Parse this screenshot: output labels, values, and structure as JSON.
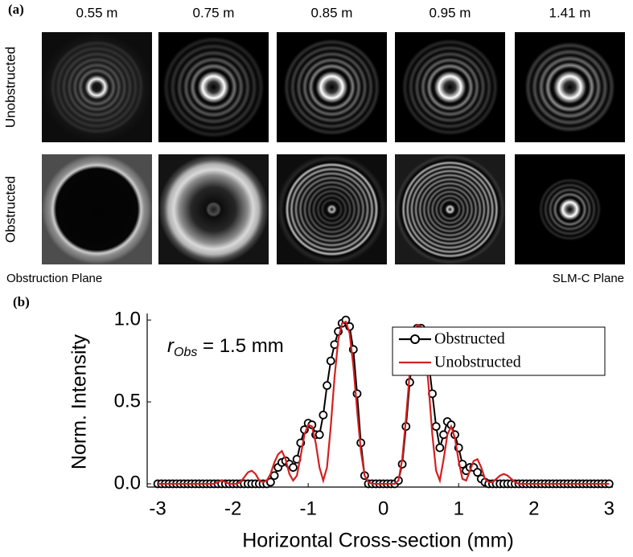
{
  "panel_a": {
    "label": "(a)",
    "columns": [
      "0.55 m",
      "0.75 m",
      "0.85 m",
      "0.95 m",
      "1.41 m"
    ],
    "rows": [
      "Unobstructed",
      "Obstructed"
    ],
    "left_caption": "Obstruction Plane",
    "right_caption": "SLM-C Plane"
  },
  "panel_b": {
    "label": "(b)"
  },
  "chart_data": {
    "type": "line",
    "xlabel": "Horizontal Cross-section (mm)",
    "ylabel": "Norm. Intensity",
    "annotation": {
      "symbol": "r",
      "subscript": "Obs",
      "text": " = 1.5 mm"
    },
    "xlim": [
      -3.14,
      3.05
    ],
    "ylim": [
      -0.02,
      1.04
    ],
    "xticks": [
      -3,
      -2,
      -1,
      0,
      1,
      2,
      3
    ],
    "yticks": [
      {
        "value": 0,
        "label": "0.0"
      },
      {
        "value": 0.5,
        "label": "0.5"
      },
      {
        "value": 1,
        "label": "1.0"
      }
    ],
    "legend": "upper right",
    "x": [
      -3,
      -2.95,
      -2.9,
      -2.85,
      -2.8,
      -2.75,
      -2.7,
      -2.65,
      -2.6,
      -2.55,
      -2.5,
      -2.45,
      -2.4,
      -2.35,
      -2.3,
      -2.25,
      -2.2,
      -2.15,
      -2.1,
      -2.05,
      -2,
      -1.95,
      -1.9,
      -1.85,
      -1.8,
      -1.75,
      -1.7,
      -1.65,
      -1.6,
      -1.55,
      -1.5,
      -1.45,
      -1.4,
      -1.35,
      -1.3,
      -1.25,
      -1.2,
      -1.15,
      -1.1,
      -1.05,
      -1,
      -0.95,
      -0.9,
      -0.85,
      -0.8,
      -0.75,
      -0.7,
      -0.65,
      -0.6,
      -0.55,
      -0.5,
      -0.45,
      -0.4,
      -0.35,
      -0.3,
      -0.25,
      -0.2,
      -0.15,
      -0.1,
      -0.05,
      0,
      0.05,
      0.1,
      0.15,
      0.2,
      0.25,
      0.3,
      0.35,
      0.4,
      0.45,
      0.5,
      0.55,
      0.6,
      0.65,
      0.7,
      0.75,
      0.8,
      0.85,
      0.9,
      0.95,
      1,
      1.05,
      1.1,
      1.15,
      1.2,
      1.25,
      1.3,
      1.35,
      1.4,
      1.45,
      1.5,
      1.55,
      1.6,
      1.65,
      1.7,
      1.75,
      1.8,
      1.85,
      1.9,
      1.95,
      2,
      2.05,
      2.1,
      2.15,
      2.2,
      2.25,
      2.3,
      2.35,
      2.4,
      2.45,
      2.5,
      2.55,
      2.6,
      2.65,
      2.7,
      2.75,
      2.8,
      2.85,
      2.9,
      2.95,
      3
    ],
    "series": [
      {
        "name": "Obstructed",
        "color": "#000000",
        "marker": "circle",
        "values": [
          0,
          0,
          0,
          0,
          0,
          0,
          0,
          0,
          0,
          0,
          0,
          0,
          0,
          0,
          0,
          0,
          0,
          0,
          0,
          0,
          0,
          0,
          0,
          0,
          0,
          0,
          0,
          0,
          0,
          0,
          0.01,
          0.05,
          0.1,
          0.13,
          0.14,
          0.12,
          0.1,
          0.15,
          0.25,
          0.33,
          0.37,
          0.36,
          0.3,
          0.3,
          0.42,
          0.6,
          0.75,
          0.85,
          0.93,
          0.98,
          1,
          0.96,
          0.82,
          0.55,
          0.25,
          0.05,
          0,
          0,
          0,
          0,
          0,
          0,
          0,
          0,
          0.02,
          0.12,
          0.35,
          0.62,
          0.85,
          0.95,
          0.95,
          0.9,
          0.75,
          0.55,
          0.35,
          0.22,
          0.3,
          0.38,
          0.36,
          0.3,
          0.22,
          0.12,
          0.08,
          0.1,
          0.1,
          0.07,
          0.03,
          0.01,
          0,
          0,
          0,
          0,
          0,
          0,
          0,
          0,
          0,
          0,
          0,
          0,
          0,
          0,
          0,
          0,
          0,
          0,
          0,
          0,
          0,
          0,
          0,
          0,
          0,
          0,
          0,
          0,
          0,
          0,
          0,
          0,
          0
        ]
      },
      {
        "name": "Unobstructed",
        "color": "#d42020",
        "values": [
          0,
          0,
          0,
          0,
          0,
          0,
          0,
          0,
          0,
          0,
          0,
          0,
          0,
          0,
          0,
          0,
          0.01,
          0.02,
          0.01,
          0,
          0,
          0,
          0.01,
          0.04,
          0.07,
          0.08,
          0.06,
          0.02,
          0.01,
          0.02,
          0.06,
          0.13,
          0.18,
          0.2,
          0.15,
          0.06,
          0.02,
          0.05,
          0.17,
          0.3,
          0.36,
          0.35,
          0.25,
          0.1,
          0.02,
          0.1,
          0.35,
          0.65,
          0.88,
          0.98,
          0.99,
          0.92,
          0.72,
          0.45,
          0.2,
          0.05,
          0.01,
          0,
          0,
          0,
          0,
          0,
          0,
          0,
          0.02,
          0.15,
          0.4,
          0.68,
          0.88,
          0.97,
          0.96,
          0.85,
          0.6,
          0.3,
          0.08,
          0.02,
          0.15,
          0.3,
          0.35,
          0.28,
          0.14,
          0.03,
          0.02,
          0.08,
          0.14,
          0.15,
          0.1,
          0.03,
          0.01,
          0.01,
          0.03,
          0.05,
          0.06,
          0.05,
          0.03,
          0.01,
          0,
          0,
          0,
          0,
          0,
          0,
          0,
          0,
          0,
          0,
          0,
          0,
          0,
          0,
          0,
          0,
          0,
          0,
          0,
          0,
          0,
          0,
          0,
          0,
          0
        ]
      }
    ]
  }
}
